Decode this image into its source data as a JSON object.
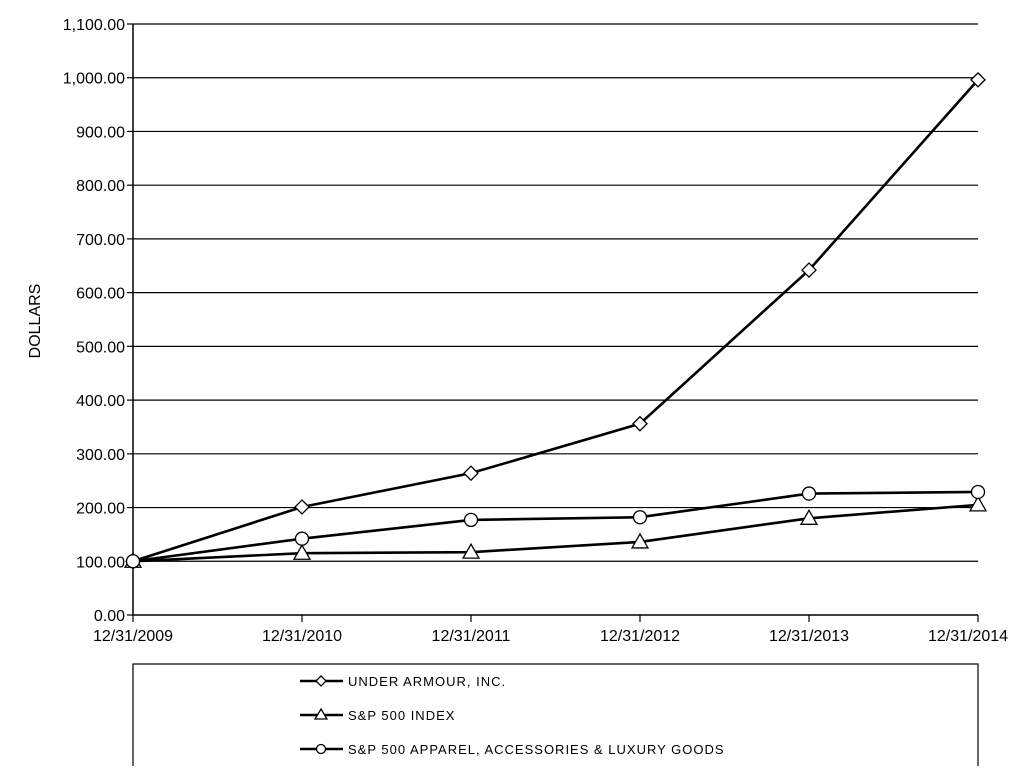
{
  "chart_data": {
    "type": "line",
    "title": "",
    "xlabel": "",
    "ylabel": "DOLLARS",
    "categories": [
      "12/31/2009",
      "12/31/2010",
      "12/31/2011",
      "12/31/2012",
      "12/31/2013",
      "12/31/2014"
    ],
    "y_tick_labels": [
      "0.00",
      "100.00",
      "200.00",
      "300.00",
      "400.00",
      "500.00",
      "600.00",
      "700.00",
      "800.00",
      "900.00",
      "1,000.00",
      "1,100.00"
    ],
    "ylim": [
      0,
      1100
    ],
    "y_tick_step": 100,
    "grid": true,
    "legend_position": "bottom",
    "series": [
      {
        "name": "UNDER ARMOUR, INC.",
        "marker": "diamond",
        "color": "#000000",
        "values": [
          100,
          201,
          264,
          356,
          642,
          996
        ]
      },
      {
        "name": "S&P 500 INDEX",
        "marker": "triangle",
        "color": "#000000",
        "values": [
          100,
          115,
          117,
          136,
          180,
          205
        ]
      },
      {
        "name": "S&P 500 APPAREL, ACCESSORIES & LUXURY GOODS",
        "marker": "circle",
        "color": "#000000",
        "values": [
          100,
          142,
          177,
          182,
          226,
          229
        ]
      }
    ]
  }
}
